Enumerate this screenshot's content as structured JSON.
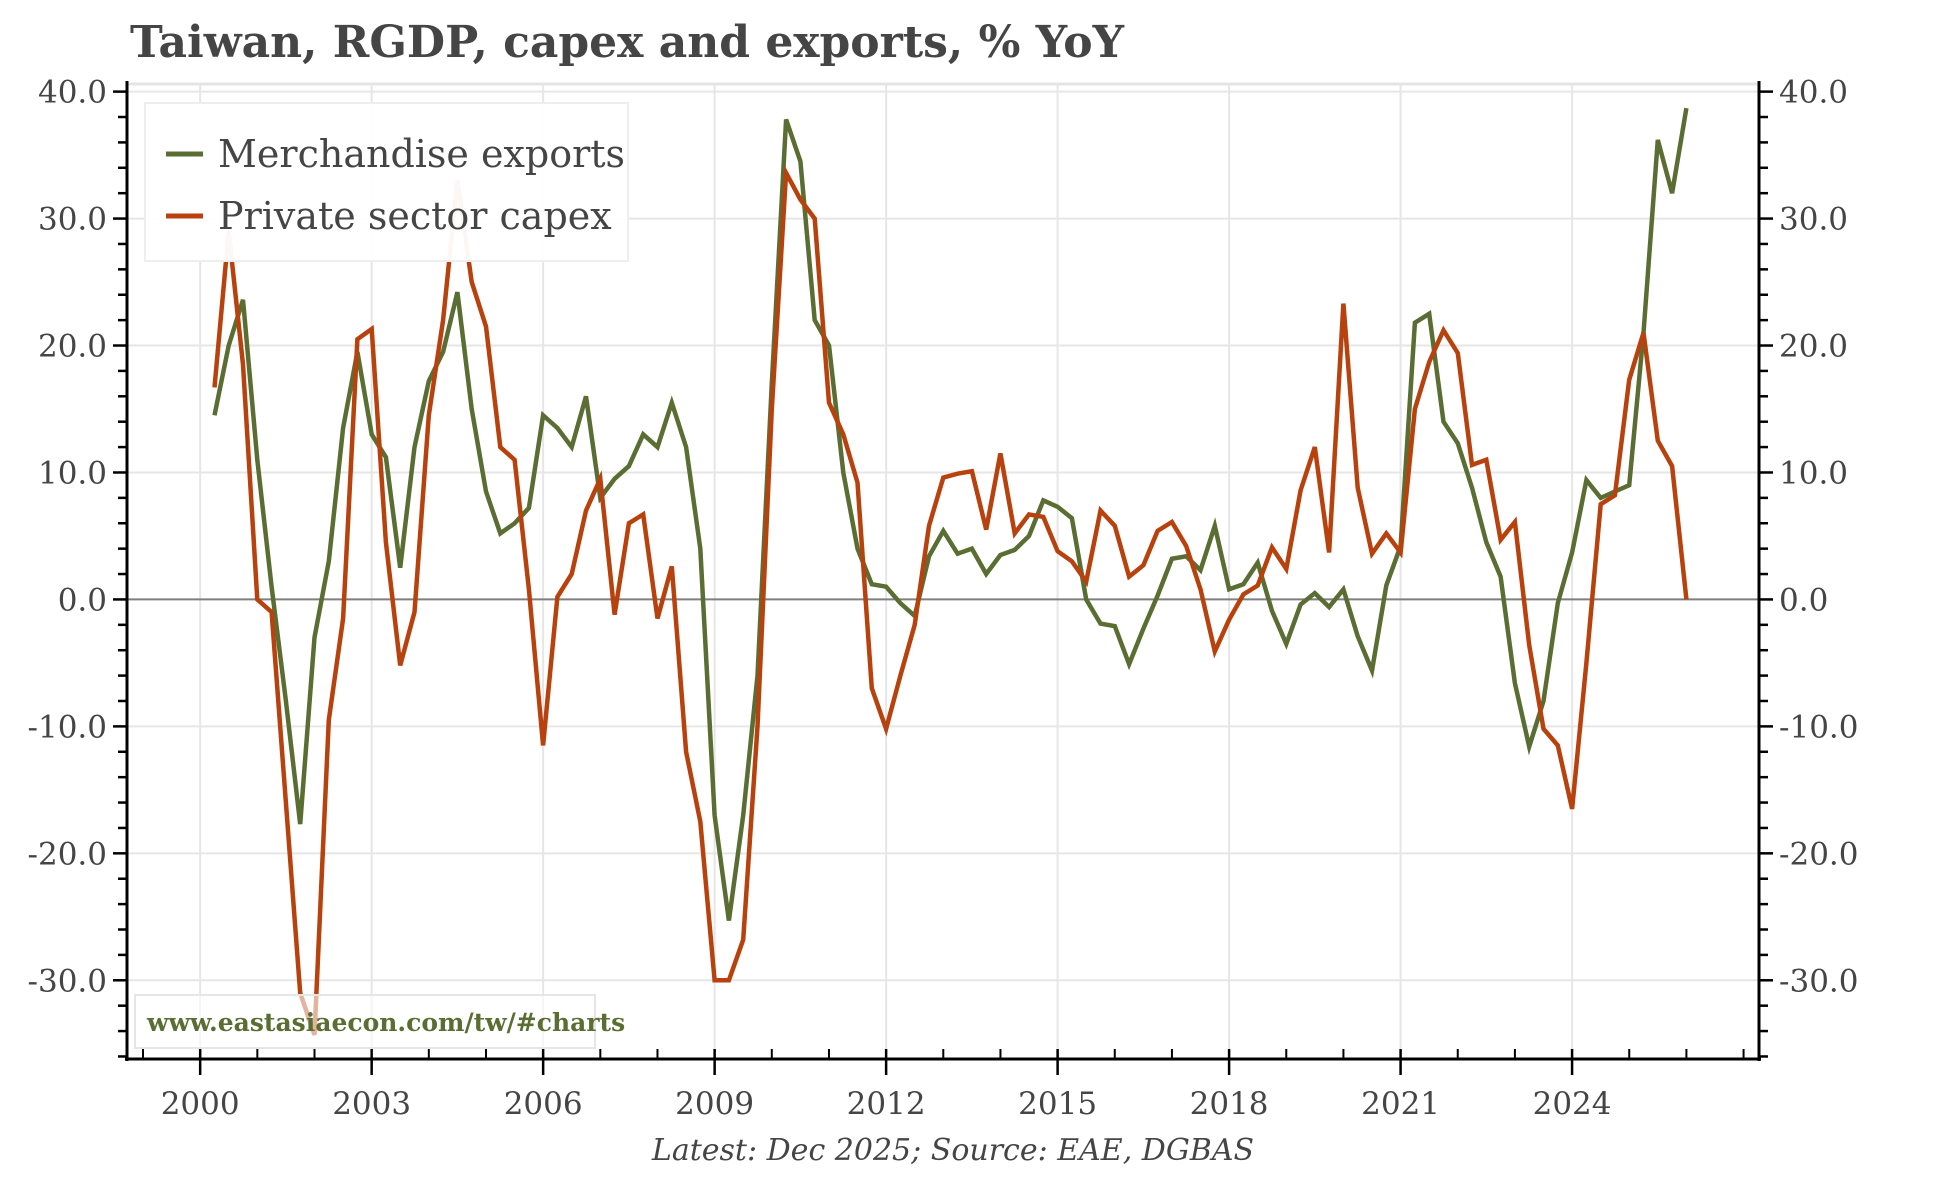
{
  "chart_data": {
    "type": "line",
    "title": "Taiwan, RGDP, capex and exports, % YoY",
    "footer": "Latest: Dec 2025; Source: EAE, DGBAS",
    "watermark": "www.eastasiaecon.com/tw/#charts",
    "xlabel": "",
    "ylabel": "",
    "x_tick_labels": [
      "2000",
      "2003",
      "2006",
      "2009",
      "2012",
      "2015",
      "2018",
      "2021",
      "2024"
    ],
    "x_ticks": [
      2000,
      2003,
      2006,
      2009,
      2012,
      2015,
      2018,
      2021,
      2024
    ],
    "y_tick_labels": [
      "40.0",
      "30.0",
      "20.0",
      "10.0",
      "0.0",
      "-10.0",
      "-20.0",
      "-30.0"
    ],
    "y_ticks": [
      40,
      30,
      20,
      10,
      0,
      -10,
      -20,
      -30
    ],
    "xlim": [
      1998.72,
      2027.27
    ],
    "ylim": [
      -36.2,
      40.6
    ],
    "grid": true,
    "zero_line": true,
    "dual_y_axis_mirrored": true,
    "legend_position": "top-left",
    "x_start": 2000.25,
    "x_step": 0.25,
    "series": [
      {
        "name": "Merchandise exports",
        "color": "#5a6e34",
        "values": [
          14.5,
          20.0,
          23.6,
          11.0,
          1.0,
          -8.0,
          -17.7,
          -3.0,
          3.0,
          13.5,
          19.5,
          13.0,
          11.2,
          2.5,
          12.0,
          17.2,
          19.5,
          24.2,
          15.0,
          8.5,
          5.2,
          6.0,
          7.2,
          14.5,
          13.5,
          12.0,
          16.0,
          8.0,
          9.5,
          10.5,
          13.0,
          12.0,
          15.5,
          12.0,
          4.0,
          -17.0,
          -25.3,
          -17.0,
          -6.0,
          17.0,
          37.8,
          34.5,
          22.0,
          20.0,
          10.0,
          4.0,
          1.2,
          1.0,
          -0.3,
          -1.3,
          3.4,
          5.4,
          3.6,
          4.0,
          2.0,
          3.5,
          3.9,
          5.0,
          7.8,
          7.3,
          6.4,
          0.0,
          -1.9,
          -2.1,
          -5.1,
          -2.3,
          0.3,
          3.2,
          3.4,
          2.3,
          5.8,
          0.8,
          1.2,
          2.9,
          -0.9,
          -3.5,
          -0.4,
          0.5,
          -0.6,
          0.8,
          -2.9,
          -5.6,
          1.1,
          4.2,
          21.8,
          22.5,
          14.0,
          12.3,
          8.8,
          4.5,
          1.8,
          -6.6,
          -11.6,
          -8.0,
          -0.3,
          3.7,
          9.4,
          8.0,
          8.5,
          9.0,
          21.0,
          36.2,
          32.0,
          38.7
        ]
      },
      {
        "name": "Private sector capex",
        "color": "#b8420e",
        "values": [
          16.7,
          29.0,
          18.5,
          0.0,
          -1.0,
          -16.0,
          -31.0,
          -34.3,
          -9.5,
          -1.5,
          20.5,
          21.3,
          4.5,
          -5.2,
          -1.0,
          14.5,
          22.0,
          33.0,
          25.0,
          21.5,
          12.0,
          11.0,
          0.8,
          -11.5,
          0.2,
          2.0,
          7.0,
          9.5,
          -1.2,
          6.0,
          6.7,
          -1.5,
          2.6,
          -12.0,
          -17.5,
          -30.0,
          -30.0,
          -26.8,
          -10.0,
          15.0,
          33.6,
          31.5,
          30.0,
          15.5,
          13.0,
          9.2,
          -7.0,
          -10.2,
          -6.0,
          -2.0,
          5.8,
          9.6,
          9.9,
          10.1,
          5.5,
          11.5,
          5.2,
          6.7,
          6.5,
          3.8,
          3.0,
          1.4,
          7.0,
          5.8,
          1.8,
          2.7,
          5.4,
          6.1,
          4.2,
          0.8,
          -4.1,
          -1.6,
          0.4,
          1.1,
          4.1,
          2.4,
          8.6,
          12.0,
          3.7,
          23.3,
          8.8,
          3.6,
          5.2,
          3.7,
          15.0,
          18.7,
          21.2,
          19.4,
          10.6,
          11.0,
          4.7,
          6.1,
          -3.6,
          -10.2,
          -11.5,
          -16.5,
          -5.0,
          7.5,
          8.2,
          17.3,
          21.0,
          12.5,
          10.5,
          0.0
        ]
      }
    ]
  }
}
